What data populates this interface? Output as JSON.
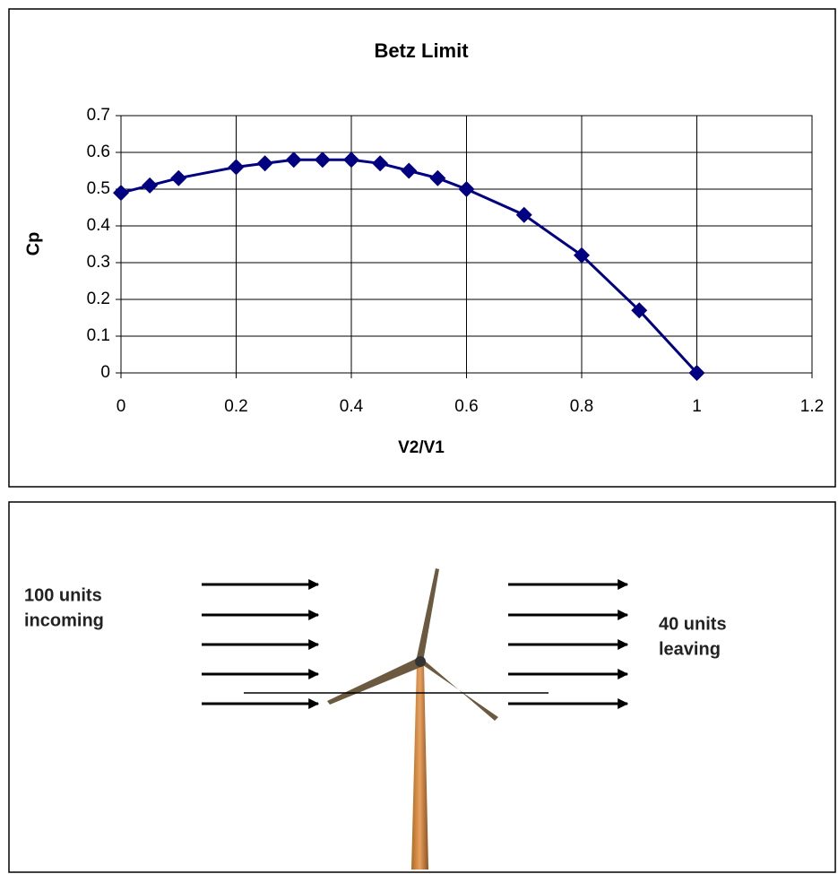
{
  "chart_data": {
    "type": "line",
    "title": "Betz Limit",
    "x_label": "V2/V1",
    "y_label": "Cp",
    "x": [
      0,
      0.05,
      0.1,
      0.2,
      0.25,
      0.3,
      0.35,
      0.4,
      0.45,
      0.5,
      0.55,
      0.6,
      0.7,
      0.8,
      0.9,
      1
    ],
    "series": [
      {
        "color": "#000080",
        "values": [
          0.49,
          0.51,
          0.53,
          0.56,
          0.57,
          0.58,
          0.58,
          0.58,
          0.57,
          0.55,
          0.53,
          0.5,
          0.43,
          0.32,
          0.17,
          0
        ]
      }
    ],
    "xlim": [
      0,
      1.2
    ],
    "xticks": [
      0,
      0.2,
      0.4,
      0.6,
      0.8,
      1,
      1.2
    ],
    "ylim": [
      0,
      0.7
    ],
    "yticks": [
      0,
      0.1,
      0.2,
      0.3,
      0.4,
      0.5,
      0.6,
      0.7
    ],
    "grid": true
  },
  "diagram": {
    "incoming": [
      "100 units",
      "incoming"
    ],
    "leaving": [
      "40 units",
      "leaving"
    ]
  }
}
